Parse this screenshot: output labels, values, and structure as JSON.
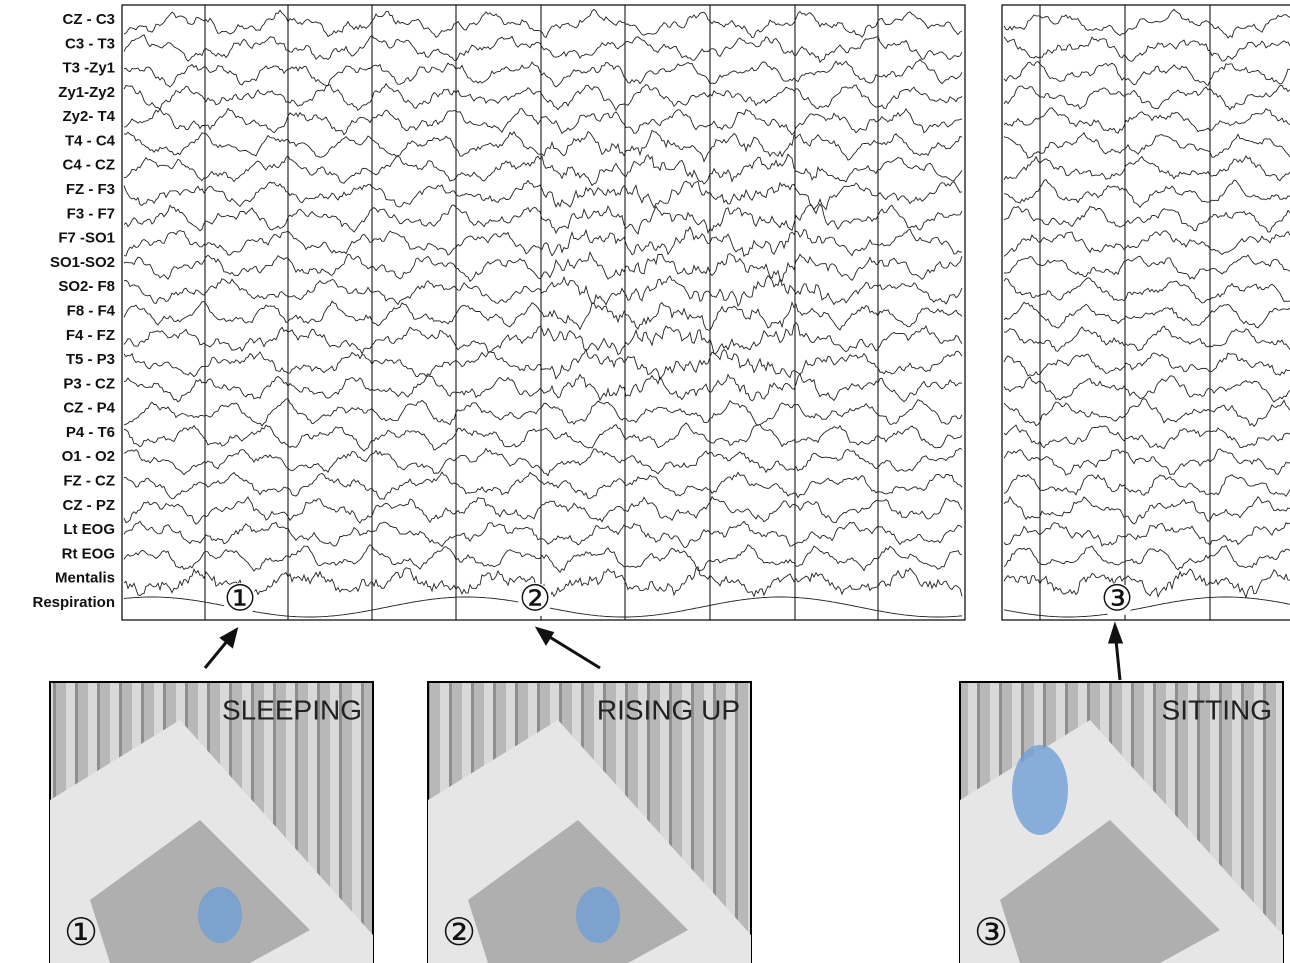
{
  "channels": [
    "CZ - C3",
    "C3 - T3",
    "T3 -Zy1",
    "Zy1-Zy2",
    "Zy2- T4",
    "T4 - C4",
    "C4 - CZ",
    "FZ - F3",
    "F3 - F7",
    "F7 -SO1",
    "SO1-SO2",
    "SO2- F8",
    "F8 - F4",
    "F4 - FZ",
    "T5 - P3",
    "P3 - CZ",
    "CZ - P4",
    "P4 - T6",
    "O1 - O2",
    "FZ - CZ",
    "CZ - PZ",
    "Lt EOG",
    "Rt EOG",
    "Mentalis",
    "Respiration"
  ],
  "events": [
    {
      "marker": "①",
      "caption": "SLEEPING"
    },
    {
      "marker": "②",
      "caption": "RISING UP"
    },
    {
      "marker": "③",
      "caption": "SITTING"
    }
  ]
}
